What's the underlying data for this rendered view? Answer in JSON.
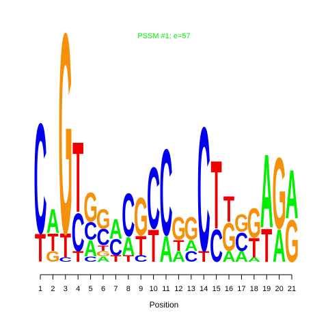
{
  "chart_data": {
    "type": "sequence-logo",
    "title": "PSSM #1; e=57",
    "xlabel": "Position",
    "ylabel": "",
    "positions": [
      "1",
      "2",
      "3",
      "4",
      "5",
      "6",
      "7",
      "8",
      "9",
      "10",
      "11",
      "12",
      "13",
      "14",
      "15",
      "16",
      "17",
      "18",
      "19",
      "20",
      "21"
    ],
    "letter_colors": {
      "A": "#00ee00",
      "C": "#0000ee",
      "G": "#f5900a",
      "T": "#ee0000"
    },
    "y_max_bits": 2.0,
    "stacks": [
      {
        "position": "1",
        "letters": [
          {
            "l": "T",
            "h": 0.26
          },
          {
            "l": "C",
            "h": 1.02
          }
        ]
      },
      {
        "position": "2",
        "letters": [
          {
            "l": "G",
            "h": 0.1
          },
          {
            "l": "T",
            "h": 0.16
          },
          {
            "l": "A",
            "h": 0.22
          }
        ]
      },
      {
        "position": "3",
        "letters": [
          {
            "l": "C",
            "h": 0.04
          },
          {
            "l": "T",
            "h": 0.22
          },
          {
            "l": "G",
            "h": 1.86
          }
        ]
      },
      {
        "position": "4",
        "letters": [
          {
            "l": "T",
            "h": 0.1
          },
          {
            "l": "C",
            "h": 0.35
          },
          {
            "l": "T",
            "h": 0.65
          }
        ]
      },
      {
        "position": "5",
        "letters": [
          {
            "l": "C",
            "h": 0.05
          },
          {
            "l": "A",
            "h": 0.15
          },
          {
            "l": "C",
            "h": 0.16
          },
          {
            "l": "G",
            "h": 0.27
          }
        ]
      },
      {
        "position": "6",
        "letters": [
          {
            "l": "A",
            "h": 0.05
          },
          {
            "l": "G",
            "h": 0.05
          },
          {
            "l": "T",
            "h": 0.05
          },
          {
            "l": "C",
            "h": 0.15
          },
          {
            "l": "G",
            "h": 0.18
          }
        ]
      },
      {
        "position": "7",
        "letters": [
          {
            "l": "T",
            "h": 0.06
          },
          {
            "l": "C",
            "h": 0.15
          },
          {
            "l": "A",
            "h": 0.18
          }
        ]
      },
      {
        "position": "8",
        "letters": [
          {
            "l": "T",
            "h": 0.06
          },
          {
            "l": "A",
            "h": 0.17
          },
          {
            "l": "C",
            "h": 0.4
          }
        ]
      },
      {
        "position": "9",
        "letters": [
          {
            "l": "C",
            "h": 0.06
          },
          {
            "l": "T",
            "h": 0.18
          },
          {
            "l": "G",
            "h": 0.35
          }
        ]
      },
      {
        "position": "10",
        "letters": [
          {
            "l": "T",
            "h": 0.3
          },
          {
            "l": "C",
            "h": 0.57
          }
        ]
      },
      {
        "position": "11",
        "letters": [
          {
            "l": "A",
            "h": 0.24
          },
          {
            "l": "C",
            "h": 0.8
          }
        ]
      },
      {
        "position": "12",
        "letters": [
          {
            "l": "A",
            "h": 0.1
          },
          {
            "l": "T",
            "h": 0.1
          },
          {
            "l": "G",
            "h": 0.21
          }
        ]
      },
      {
        "position": "13",
        "letters": [
          {
            "l": "C",
            "h": 0.1
          },
          {
            "l": "A",
            "h": 0.1
          },
          {
            "l": "G",
            "h": 0.21
          }
        ]
      },
      {
        "position": "14",
        "letters": [
          {
            "l": "T",
            "h": 0.1
          },
          {
            "l": "C",
            "h": 1.15
          }
        ]
      },
      {
        "position": "15",
        "letters": [
          {
            "l": "C",
            "h": 0.3
          },
          {
            "l": "T",
            "h": 0.63
          }
        ]
      },
      {
        "position": "16",
        "letters": [
          {
            "l": "A",
            "h": 0.1
          },
          {
            "l": "G",
            "h": 0.26
          },
          {
            "l": "T",
            "h": 0.24
          }
        ]
      },
      {
        "position": "17",
        "letters": [
          {
            "l": "A",
            "h": 0.1
          },
          {
            "l": "C",
            "h": 0.17
          },
          {
            "l": "G",
            "h": 0.16
          }
        ]
      },
      {
        "position": "18",
        "letters": [
          {
            "l": "A",
            "h": 0.04
          },
          {
            "l": "T",
            "h": 0.18
          },
          {
            "l": "G",
            "h": 0.27
          }
        ]
      },
      {
        "position": "19",
        "letters": [
          {
            "l": "T",
            "h": 0.31
          },
          {
            "l": "A",
            "h": 0.68
          }
        ]
      },
      {
        "position": "20",
        "letters": [
          {
            "l": "A",
            "h": 0.3
          },
          {
            "l": "G",
            "h": 0.66
          }
        ]
      },
      {
        "position": "21",
        "letters": [
          {
            "l": "G",
            "h": 0.39
          },
          {
            "l": "A",
            "h": 0.45
          }
        ]
      }
    ]
  }
}
